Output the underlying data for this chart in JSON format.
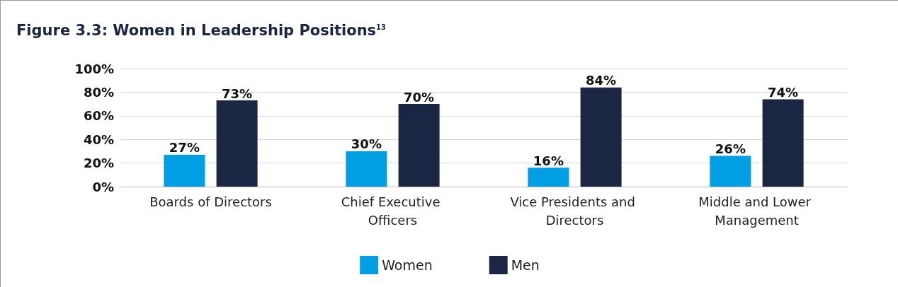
{
  "chart_data": {
    "type": "bar",
    "title": "Figure 3.3: Women in Leadership Positions$^{13}$",
    "categories": [
      "Boards of Directors",
      "Chief Executive Officers",
      "Vice Presidents and Directors",
      "Middle and Lower Management"
    ],
    "series": [
      {
        "name": "Women",
        "color": "#009fe3",
        "values": [
          27,
          30,
          16,
          26
        ],
        "value_labels": [
          "27%",
          "30%",
          "16%",
          "26%"
        ]
      },
      {
        "name": "Men",
        "color": "#1b2643",
        "values": [
          73,
          70,
          84,
          74
        ],
        "value_labels": [
          "73%",
          "70%",
          "84%",
          "74%"
        ]
      }
    ],
    "ylim": [
      0,
      100
    ],
    "yticks": [
      {
        "value": 0,
        "label": "0%"
      },
      {
        "value": 20,
        "label": "20%"
      },
      {
        "value": 40,
        "label": "40%"
      },
      {
        "value": 60,
        "label": "60%"
      },
      {
        "value": 80,
        "label": "80%"
      },
      {
        "value": 100,
        "label": "100%"
      }
    ],
    "grid": "y",
    "legend": "bottom"
  }
}
